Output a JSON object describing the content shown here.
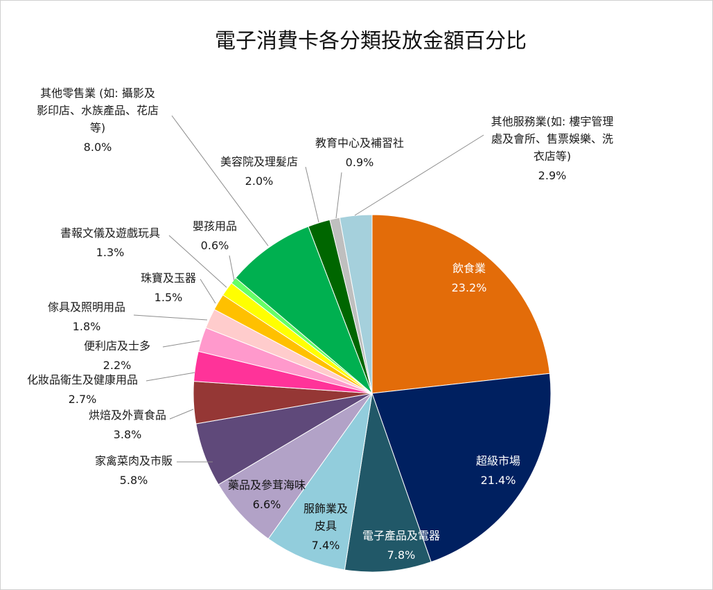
{
  "chart_data": {
    "type": "pie",
    "title": "電子消費卡各分類投放金額百分比",
    "slices": [
      {
        "label": [
          "飲食業"
        ],
        "value": 23.2,
        "value_label": "23.2%",
        "color": "#E36C09"
      },
      {
        "label": [
          "超級市場"
        ],
        "value": 21.4,
        "value_label": "21.4%",
        "color": "#002060"
      },
      {
        "label": [
          "電子產品及電器"
        ],
        "value": 7.8,
        "value_label": "7.8%",
        "color": "#215868"
      },
      {
        "label": [
          "服飾業及",
          "皮具"
        ],
        "value": 7.4,
        "value_label": "7.4%",
        "color": "#92CDDC"
      },
      {
        "label": [
          "藥品及參茸海味"
        ],
        "value": 6.6,
        "value_label": "6.6%",
        "color": "#B2A2C7"
      },
      {
        "label": [
          "家禽菜肉及市販"
        ],
        "value": 5.8,
        "value_label": "5.8%",
        "color": "#5F497A"
      },
      {
        "label": [
          "烘焙及外賣食品"
        ],
        "value": 3.8,
        "value_label": "3.8%",
        "color": "#953735"
      },
      {
        "label": [
          "化妝品衛生及健康用品"
        ],
        "value": 2.7,
        "value_label": "2.7%",
        "color": "#FF3399"
      },
      {
        "label": [
          "便利店及士多"
        ],
        "value": 2.2,
        "value_label": "2.2%",
        "color": "#FF99CC"
      },
      {
        "label": [
          "傢具及照明用品"
        ],
        "value": 1.8,
        "value_label": "1.8%",
        "color": "#FFCCCC"
      },
      {
        "label": [
          "珠寶及玉器"
        ],
        "value": 1.5,
        "value_label": "1.5%",
        "color": "#FFC000"
      },
      {
        "label": [
          "書報文儀及遊戲玩具"
        ],
        "value": 1.3,
        "value_label": "1.3%",
        "color": "#FFFF00"
      },
      {
        "label": [
          "嬰孩用品"
        ],
        "value": 0.6,
        "value_label": "0.6%",
        "color": "#66FF66"
      },
      {
        "label": [
          "其他零售業 (如: 攝影及",
          "影印店、水族產品、花店",
          "等)"
        ],
        "value": 8.0,
        "value_label": "8.0%",
        "color": "#00B050"
      },
      {
        "label": [
          "美容院及理髮店"
        ],
        "value": 2.0,
        "value_label": "2.0%",
        "color": "#006600"
      },
      {
        "label": [
          "教育中心及補習社"
        ],
        "value": 0.9,
        "value_label": "0.9%",
        "color": "#BFBFBF"
      },
      {
        "label": [
          "其他服務業(如: 樓宇管理",
          "處及會所、售票娛樂、洗",
          "衣店等)"
        ],
        "value": 2.9,
        "value_label": "2.9%",
        "color": "#A5D0DC"
      }
    ],
    "start_angle": "12 o'clock",
    "direction": "clockwise",
    "legend": "none",
    "labels": "data labels with leader lines"
  }
}
